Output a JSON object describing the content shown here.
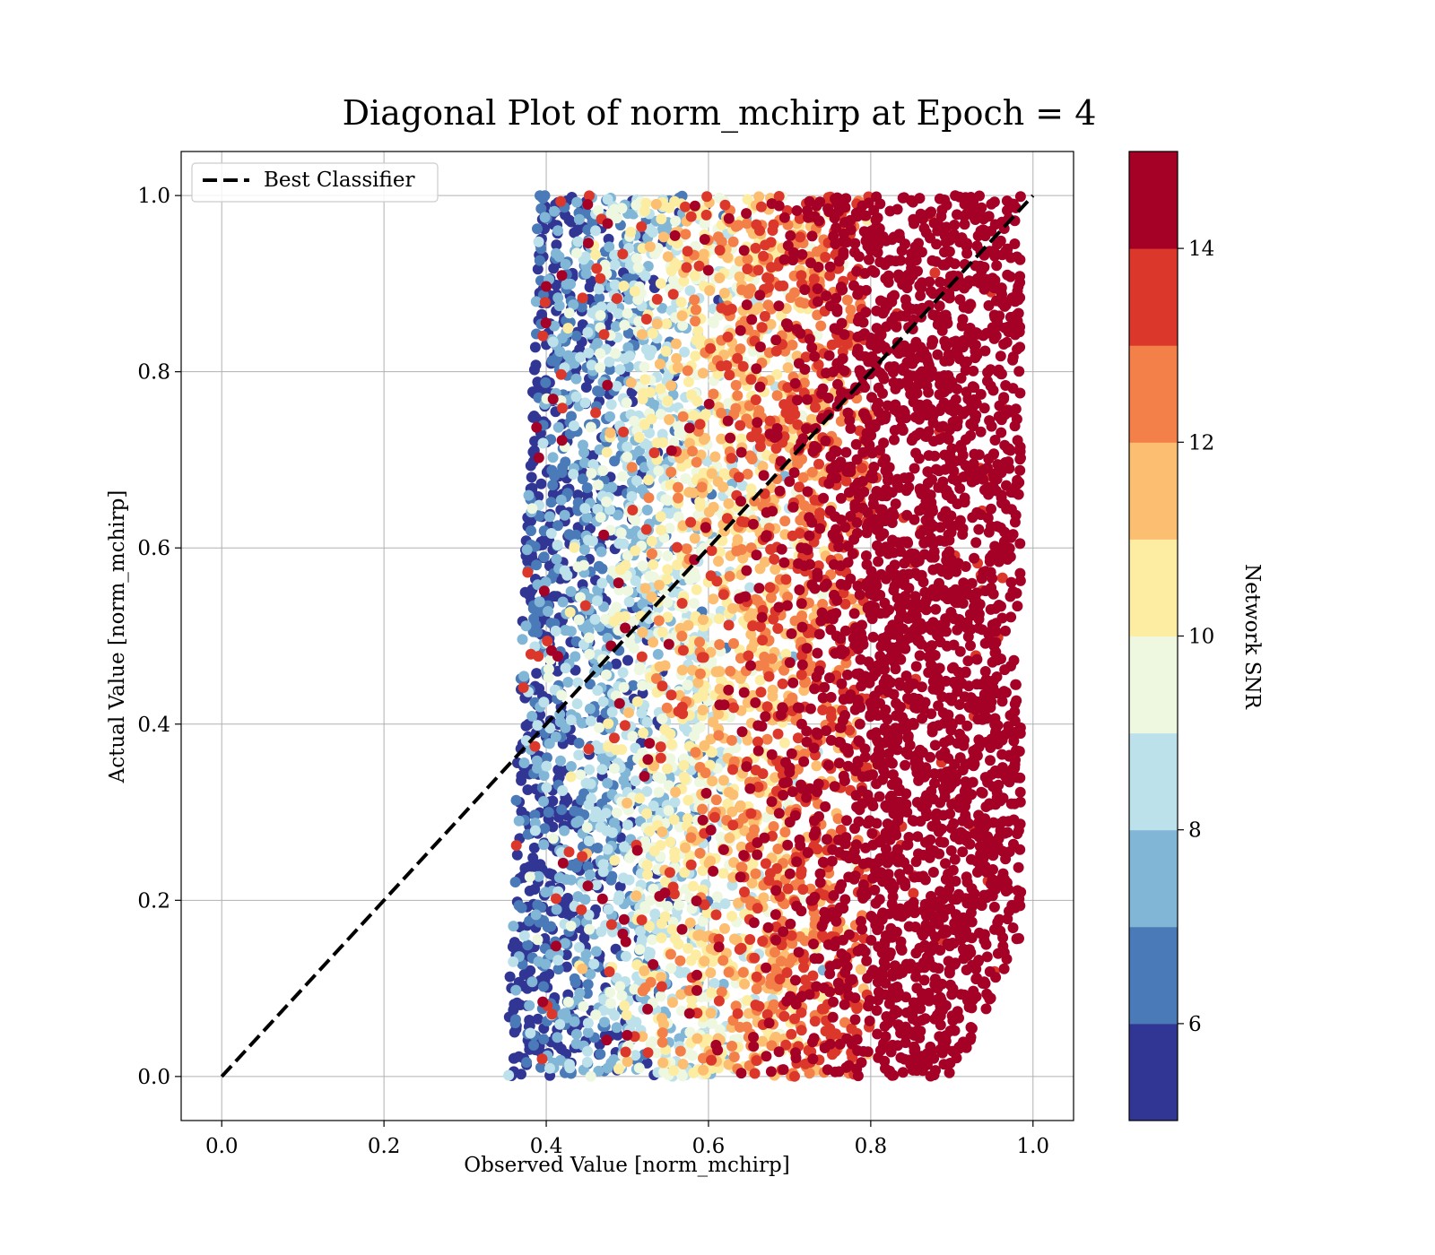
{
  "chart_data": {
    "type": "scatter",
    "title": "Diagonal Plot of norm_mchirp at Epoch = 4",
    "xlabel": "Observed Value [norm_mchirp]",
    "ylabel": "Actual Value [norm_mchirp]",
    "xlim": [
      -0.05,
      1.05
    ],
    "ylim": [
      -0.05,
      1.05
    ],
    "xticks": [
      "0.0",
      "0.2",
      "0.4",
      "0.6",
      "0.8",
      "1.0"
    ],
    "yticks": [
      "0.0",
      "0.2",
      "0.4",
      "0.6",
      "0.8",
      "1.0"
    ],
    "grid": true,
    "legend": {
      "position": "top-left",
      "entries": [
        "Best Classifier"
      ]
    },
    "reference_line": {
      "name": "Best Classifier",
      "style": "dashed",
      "color": "#000000",
      "x": [
        0.0,
        1.0
      ],
      "y": [
        0.0,
        1.0
      ]
    },
    "point_distribution": {
      "note_x_range": [
        0.35,
        1.0
      ],
      "y_range": [
        0.0,
        1.0
      ],
      "snr_trend": "low SNR near x=0.37-0.45, high SNR for x>0.8"
    },
    "colorbar": {
      "label": "Network SNR",
      "range": [
        5,
        15
      ],
      "ticks": [
        "6",
        "8",
        "10",
        "12",
        "14"
      ],
      "bins": [
        {
          "from": 5,
          "to": 6,
          "color": "#313695"
        },
        {
          "from": 6,
          "to": 7,
          "color": "#4a7ab7"
        },
        {
          "from": 7,
          "to": 8,
          "color": "#81b6d7"
        },
        {
          "from": 8,
          "to": 9,
          "color": "#bde1eb"
        },
        {
          "from": 9,
          "to": 10,
          "color": "#eef7df"
        },
        {
          "from": 10,
          "to": 11,
          "color": "#fdeda3"
        },
        {
          "from": 11,
          "to": 12,
          "color": "#fcbe70"
        },
        {
          "from": 12,
          "to": 13,
          "color": "#f48049"
        },
        {
          "from": 13,
          "to": 14,
          "color": "#db382b"
        },
        {
          "from": 14,
          "to": 15,
          "color": "#a50026"
        }
      ]
    }
  }
}
